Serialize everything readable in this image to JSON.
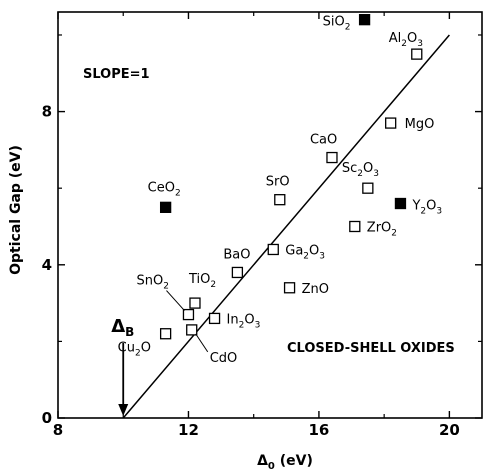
{
  "chart_data": {
    "type": "scatter",
    "title": "",
    "xlabel": "Δ0 (eV)",
    "ylabel": "Optical Gap (eV)",
    "xlim": [
      8,
      21
    ],
    "ylim": [
      0,
      10.6
    ],
    "x_ticks": [
      "8",
      "12",
      "16",
      "20"
    ],
    "y_ticks": [
      "0",
      "4",
      "8"
    ],
    "x_tick_values": [
      8,
      12,
      16,
      20
    ],
    "y_tick_values": [
      0,
      4,
      8
    ],
    "grid": false,
    "annotations": {
      "slope": "SLOPE=1",
      "closed_shell": "CLOSED-SHELL OXIDES",
      "delta_b": "ΔB"
    },
    "fit_line": {
      "name": "",
      "slope": 1,
      "x": [
        10,
        20
      ],
      "y": [
        0,
        10
      ]
    },
    "delta_b_value": 10,
    "series": [
      {
        "name": "filled",
        "marker": "filled-square",
        "points": [
          {
            "label": "SiO2",
            "x": 17.4,
            "y": 10.4
          },
          {
            "label": "CeO2",
            "x": 11.3,
            "y": 5.5
          },
          {
            "label": "Y2O3",
            "x": 18.5,
            "y": 5.6
          }
        ]
      },
      {
        "name": "open",
        "marker": "open-square",
        "points": [
          {
            "label": "Al2O3",
            "x": 19.0,
            "y": 9.5
          },
          {
            "label": "MgO",
            "x": 18.2,
            "y": 7.7
          },
          {
            "label": "CaO",
            "x": 16.4,
            "y": 6.8
          },
          {
            "label": "Sc2O3",
            "x": 17.5,
            "y": 6.0
          },
          {
            "label": "SrO",
            "x": 14.8,
            "y": 5.7
          },
          {
            "label": "ZrO2",
            "x": 17.1,
            "y": 5.0
          },
          {
            "label": "BaO",
            "x": 13.5,
            "y": 3.8
          },
          {
            "label": "Ga2O3",
            "x": 14.6,
            "y": 4.4
          },
          {
            "label": "ZnO",
            "x": 15.1,
            "y": 3.4
          },
          {
            "label": "SnO2",
            "x": 12.0,
            "y": 2.7
          },
          {
            "label": "TiO2",
            "x": 12.2,
            "y": 3.0
          },
          {
            "label": "In2O3",
            "x": 12.8,
            "y": 2.6
          },
          {
            "label": "CdO",
            "x": 12.1,
            "y": 2.3
          },
          {
            "label": "Cu2O",
            "x": 11.3,
            "y": 2.2
          }
        ]
      }
    ]
  }
}
